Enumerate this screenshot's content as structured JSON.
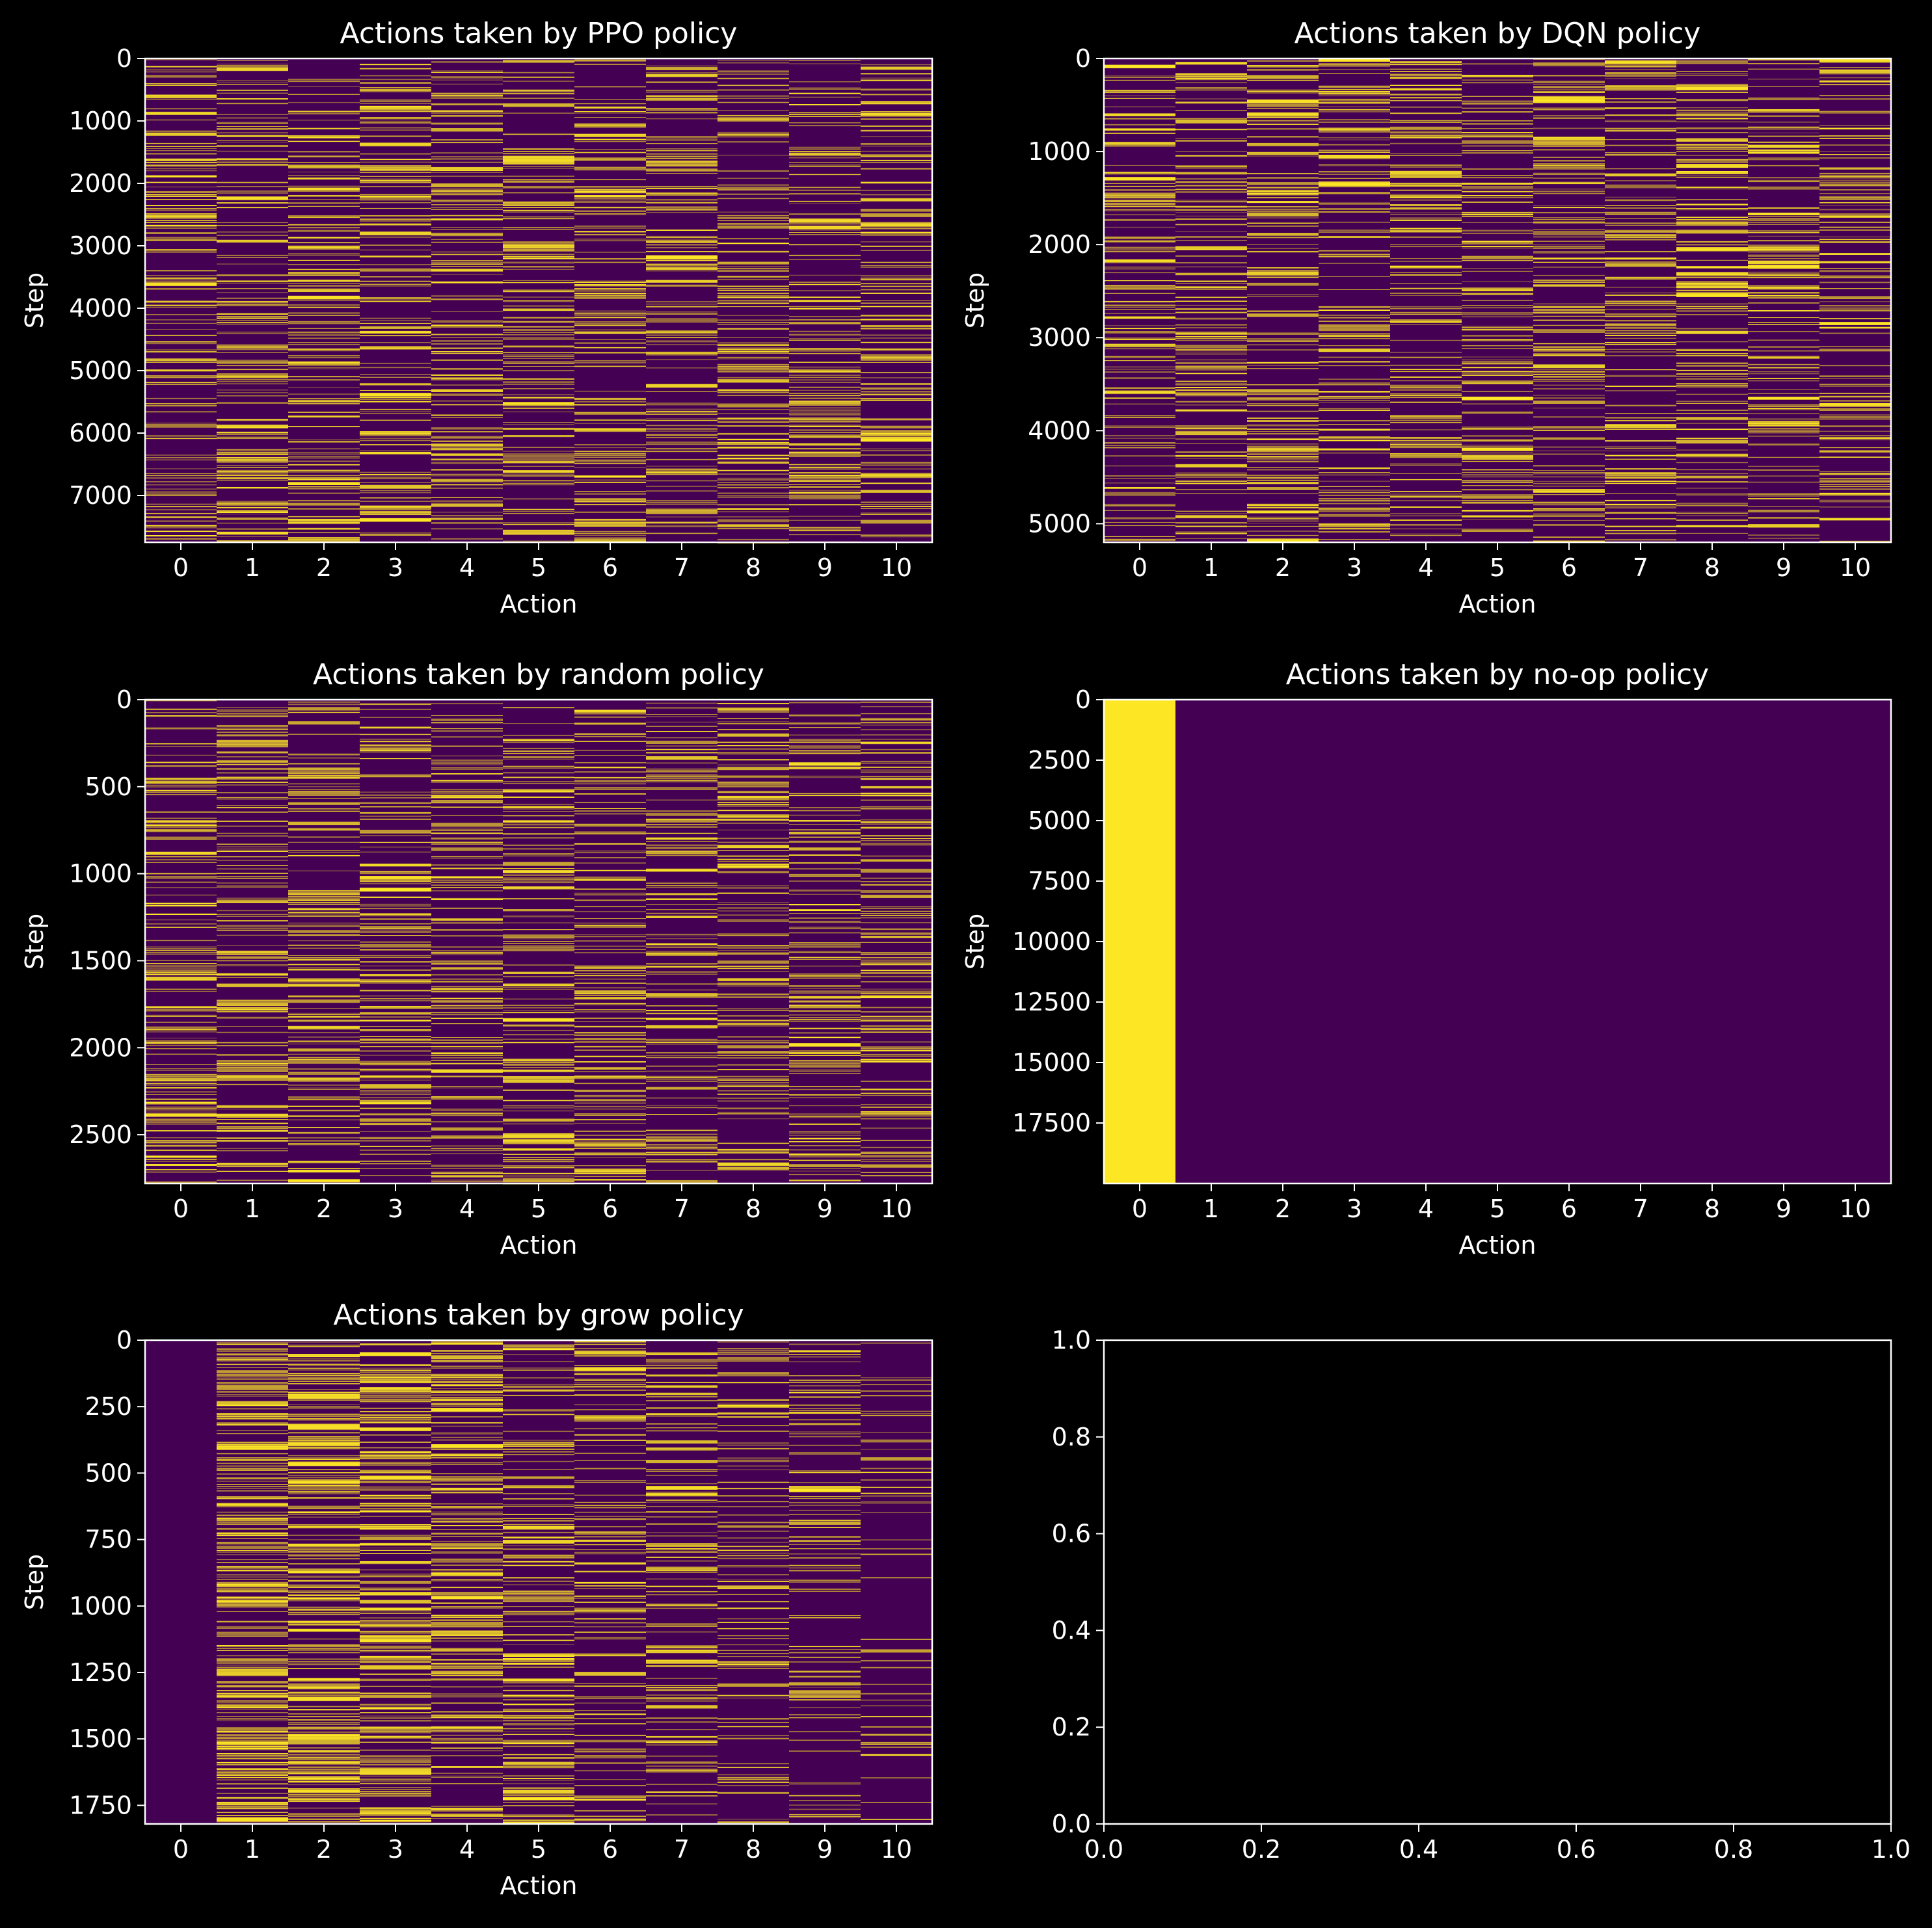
{
  "figure": {
    "background": "#000000"
  },
  "colors": {
    "empty": "#440154",
    "taken": "#fde725",
    "axes": "#ffffff"
  },
  "chart_data": [
    {
      "type": "heatmap",
      "title": "Actions taken by PPO policy",
      "xlabel": "Action",
      "ylabel": "Step",
      "categories": [
        "0",
        "1",
        "2",
        "3",
        "4",
        "5",
        "6",
        "7",
        "8",
        "9",
        "10"
      ],
      "ylim": [
        0,
        7750
      ],
      "yticks": [
        0,
        1000,
        2000,
        3000,
        4000,
        5000,
        6000,
        7000
      ],
      "ytick_labels": [
        "0",
        "1000",
        "2000",
        "3000",
        "4000",
        "5000",
        "6000",
        "7000"
      ],
      "pattern": "sparse",
      "action_share": [
        0.09,
        0.09,
        0.09,
        0.09,
        0.09,
        0.09,
        0.09,
        0.09,
        0.09,
        0.09,
        0.09
      ]
    },
    {
      "type": "heatmap",
      "title": "Actions taken by DQN policy",
      "xlabel": "Action",
      "ylabel": "Step",
      "categories": [
        "0",
        "1",
        "2",
        "3",
        "4",
        "5",
        "6",
        "7",
        "8",
        "9",
        "10"
      ],
      "ylim": [
        0,
        5200
      ],
      "yticks": [
        0,
        1000,
        2000,
        3000,
        4000,
        5000
      ],
      "ytick_labels": [
        "0",
        "1000",
        "2000",
        "3000",
        "4000",
        "5000"
      ],
      "pattern": "sparse",
      "action_share": [
        0.09,
        0.09,
        0.09,
        0.09,
        0.09,
        0.09,
        0.09,
        0.09,
        0.09,
        0.09,
        0.09
      ]
    },
    {
      "type": "heatmap",
      "title": "Actions taken by random policy",
      "xlabel": "Action",
      "ylabel": "Step",
      "categories": [
        "0",
        "1",
        "2",
        "3",
        "4",
        "5",
        "6",
        "7",
        "8",
        "9",
        "10"
      ],
      "ylim": [
        0,
        2780
      ],
      "yticks": [
        0,
        500,
        1000,
        1500,
        2000,
        2500
      ],
      "ytick_labels": [
        "0",
        "500",
        "1000",
        "1500",
        "2000",
        "2500"
      ],
      "pattern": "sparse",
      "action_share": [
        0.09,
        0.09,
        0.09,
        0.09,
        0.09,
        0.09,
        0.09,
        0.09,
        0.09,
        0.09,
        0.09
      ]
    },
    {
      "type": "heatmap",
      "title": "Actions taken by no-op policy",
      "xlabel": "Action",
      "ylabel": "Step",
      "categories": [
        "0",
        "1",
        "2",
        "3",
        "4",
        "5",
        "6",
        "7",
        "8",
        "9",
        "10"
      ],
      "ylim": [
        0,
        20000
      ],
      "yticks": [
        0,
        2500,
        5000,
        7500,
        10000,
        12500,
        15000,
        17500
      ],
      "ytick_labels": [
        "0",
        "2500",
        "5000",
        "7500",
        "10000",
        "12500",
        "15000",
        "17500"
      ],
      "pattern": "constant",
      "action_share": [
        1,
        0,
        0,
        0,
        0,
        0,
        0,
        0,
        0,
        0,
        0
      ]
    },
    {
      "type": "heatmap",
      "title": "Actions taken by grow policy",
      "xlabel": "Action",
      "ylabel": "Step",
      "categories": [
        "0",
        "1",
        "2",
        "3",
        "4",
        "5",
        "6",
        "7",
        "8",
        "9",
        "10"
      ],
      "ylim": [
        0,
        1820
      ],
      "yticks": [
        0,
        250,
        500,
        750,
        1000,
        1250,
        1500,
        1750
      ],
      "ytick_labels": [
        "0",
        "250",
        "500",
        "750",
        "1000",
        "1250",
        "1500",
        "1750"
      ],
      "pattern": "sparse",
      "action_share": [
        0,
        0.16,
        0.16,
        0.15,
        0.13,
        0.1,
        0.08,
        0.07,
        0.06,
        0.06,
        0.03
      ]
    },
    {
      "type": "empty",
      "xlim": [
        0,
        1
      ],
      "ylim": [
        0,
        1
      ],
      "xticks": [
        "0.0",
        "0.2",
        "0.4",
        "0.6",
        "0.8",
        "1.0"
      ],
      "yticks": [
        "0.0",
        "0.2",
        "0.4",
        "0.6",
        "0.8",
        "1.0"
      ]
    }
  ]
}
